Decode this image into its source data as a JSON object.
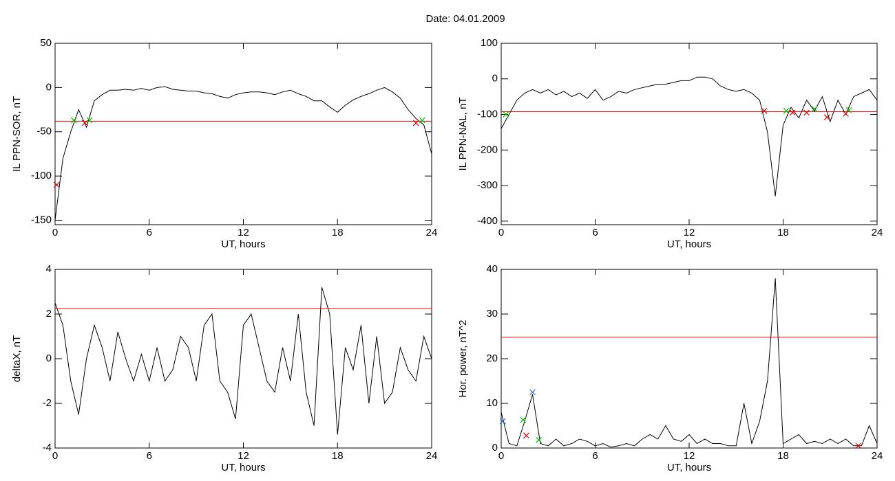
{
  "title": "Date:  04.01.2009",
  "chart_data": [
    {
      "type": "line",
      "ylabel": "IL PPN-SOR, nT",
      "xlabel": "UT, hours",
      "xlim": [
        0,
        24
      ],
      "xticks": [
        0,
        6,
        12,
        18,
        24
      ],
      "ylim": [
        -155,
        50
      ],
      "yticks": [
        50,
        0,
        -50,
        -100,
        -150
      ],
      "x": [
        0,
        0.5,
        1,
        1.5,
        2,
        2.5,
        3,
        3.5,
        4,
        4.5,
        5,
        5.5,
        6,
        6.5,
        7,
        7.5,
        8,
        8.5,
        9,
        9.5,
        10,
        10.5,
        11,
        11.5,
        12,
        12.5,
        13,
        13.5,
        14,
        14.5,
        15,
        15.5,
        16,
        16.5,
        17,
        17.5,
        18,
        18.5,
        19,
        19.5,
        20,
        20.5,
        21,
        21.5,
        22,
        22.5,
        23,
        23.5,
        24
      ],
      "series": [
        {
          "color": "#000000",
          "values": [
            -150,
            -80,
            -50,
            -25,
            -45,
            -15,
            -8,
            -3,
            -3,
            -2,
            -3,
            -1,
            -3,
            0,
            1,
            -2,
            -3,
            -4,
            -4,
            -6,
            -7,
            -10,
            -12,
            -8,
            -6,
            -5,
            -5,
            -6,
            -8,
            -5,
            -3,
            -7,
            -10,
            -15,
            -15,
            -22,
            -28,
            -20,
            -14,
            -10,
            -7,
            -3,
            0,
            -5,
            -12,
            -25,
            -35,
            -42,
            -75
          ]
        }
      ],
      "threshold": -38,
      "threshold_color": "#e00000",
      "markers": [
        {
          "color": "#00c000",
          "x": [
            1.2,
            2.2,
            23.4
          ],
          "y": [
            -37,
            -37,
            -37
          ]
        },
        {
          "color": "#e00000",
          "x": [
            0.1,
            1.9,
            23
          ],
          "y": [
            -110,
            -40,
            -40
          ]
        }
      ]
    },
    {
      "type": "line",
      "ylabel": "IL PPN-NAL, nT",
      "xlabel": "UT, hours",
      "xlim": [
        0,
        24
      ],
      "xticks": [
        0,
        6,
        12,
        18,
        24
      ],
      "ylim": [
        -410,
        100
      ],
      "yticks": [
        100,
        0,
        -100,
        -200,
        -300,
        -400
      ],
      "x": [
        0,
        0.5,
        1,
        1.5,
        2,
        2.5,
        3,
        3.5,
        4,
        4.5,
        5,
        5.5,
        6,
        6.5,
        7,
        7.5,
        8,
        8.5,
        9,
        9.5,
        10,
        10.5,
        11,
        11.5,
        12,
        12.5,
        13,
        13.5,
        14,
        14.5,
        15,
        15.5,
        16,
        16.5,
        17,
        17.5,
        18,
        18.5,
        19,
        19.5,
        20,
        20.5,
        21,
        21.5,
        22,
        22.5,
        23,
        23.5,
        24
      ],
      "series": [
        {
          "color": "#000000",
          "values": [
            -140,
            -100,
            -60,
            -40,
            -30,
            -40,
            -30,
            -45,
            -35,
            -50,
            -40,
            -55,
            -30,
            -60,
            -50,
            -35,
            -40,
            -30,
            -25,
            -20,
            -15,
            -15,
            -10,
            -5,
            -5,
            5,
            5,
            0,
            -20,
            -30,
            -35,
            -30,
            -40,
            -60,
            -150,
            -330,
            -130,
            -80,
            -110,
            -60,
            -90,
            -50,
            -120,
            -60,
            -100,
            -50,
            -40,
            -30,
            -60
          ]
        }
      ],
      "threshold": -92,
      "threshold_color": "#e00000",
      "markers": [
        {
          "color": "#00c000",
          "x": [
            0.3,
            18.2,
            20,
            22.2
          ],
          "y": [
            -100,
            -90,
            -85,
            -88
          ]
        },
        {
          "color": "#e00000",
          "x": [
            16.8,
            18.6,
            19.5,
            20.8,
            22
          ],
          "y": [
            -90,
            -95,
            -95,
            -108,
            -98
          ]
        }
      ]
    },
    {
      "type": "line",
      "ylabel": "deltaX, nT",
      "xlabel": "UT, hours",
      "xlim": [
        0,
        24
      ],
      "xticks": [
        0,
        6,
        12,
        18,
        24
      ],
      "ylim": [
        -4,
        4
      ],
      "yticks": [
        4,
        2,
        0,
        -2,
        -4
      ],
      "x": [
        0,
        0.5,
        1,
        1.5,
        2,
        2.5,
        3,
        3.5,
        4,
        4.5,
        5,
        5.5,
        6,
        6.5,
        7,
        7.5,
        8,
        8.5,
        9,
        9.5,
        10,
        10.5,
        11,
        11.5,
        12,
        12.5,
        13,
        13.5,
        14,
        14.5,
        15,
        15.5,
        16,
        16.5,
        17,
        17.5,
        18,
        18.5,
        19,
        19.5,
        20,
        20.5,
        21,
        21.5,
        22,
        22.5,
        23,
        23.5,
        24
      ],
      "series": [
        {
          "color": "#000000",
          "values": [
            2.5,
            1.5,
            -1,
            -2.5,
            0,
            1.5,
            0.5,
            -1,
            1.2,
            0,
            -1,
            0.2,
            -1,
            0.5,
            -1,
            -0.5,
            1,
            0.5,
            -1,
            1.5,
            2,
            -1,
            -1.5,
            -2.7,
            1.5,
            2,
            0.5,
            -1,
            -1.5,
            0.5,
            -1,
            2,
            -1.5,
            -3,
            3.2,
            2,
            -3.4,
            0.5,
            -0.5,
            1.5,
            -2,
            1,
            -2,
            -1.5,
            0.5,
            -0.5,
            -1,
            1,
            0
          ]
        }
      ],
      "threshold": 2.25,
      "threshold_color": "#e00000",
      "markers": []
    },
    {
      "type": "line",
      "ylabel": "Hor. power, nT^2",
      "xlabel": "UT, hours",
      "xlim": [
        0,
        24
      ],
      "xticks": [
        0,
        6,
        12,
        18,
        24
      ],
      "ylim": [
        0,
        40
      ],
      "yticks": [
        40,
        30,
        20,
        10,
        0
      ],
      "x": [
        0,
        0.5,
        1,
        1.5,
        2,
        2.5,
        3,
        3.5,
        4,
        4.5,
        5,
        5.5,
        6,
        6.5,
        7,
        7.5,
        8,
        8.5,
        9,
        9.5,
        10,
        10.5,
        11,
        11.5,
        12,
        12.5,
        13,
        13.5,
        14,
        14.5,
        15,
        15.5,
        16,
        16.5,
        17,
        17.5,
        18,
        18.5,
        19,
        19.5,
        20,
        20.5,
        21,
        21.5,
        22,
        22.5,
        23,
        23.5,
        24
      ],
      "series": [
        {
          "color": "#000000",
          "values": [
            8,
            1,
            0.5,
            6,
            12,
            1,
            0.5,
            2,
            0.5,
            1,
            2,
            1.5,
            0.5,
            1,
            0.2,
            0.5,
            1,
            0.5,
            2,
            3,
            2,
            5,
            2,
            1.5,
            3,
            1,
            2,
            1,
            1,
            0.5,
            0.5,
            10,
            1,
            6,
            15,
            38,
            1,
            2,
            3,
            1,
            1.5,
            1,
            2,
            1,
            2,
            0.5,
            0.5,
            5,
            1
          ]
        }
      ],
      "threshold": 24.8,
      "threshold_color": "#e00000",
      "markers": [
        {
          "color": "#2060d0",
          "x": [
            0.1,
            2
          ],
          "y": [
            6,
            12.5
          ]
        },
        {
          "color": "#00c000",
          "x": [
            1.4,
            2.4
          ],
          "y": [
            6.3,
            1.8
          ]
        },
        {
          "color": "#e00000",
          "x": [
            1.6,
            22.8
          ],
          "y": [
            2.8,
            0.5
          ]
        }
      ]
    }
  ]
}
